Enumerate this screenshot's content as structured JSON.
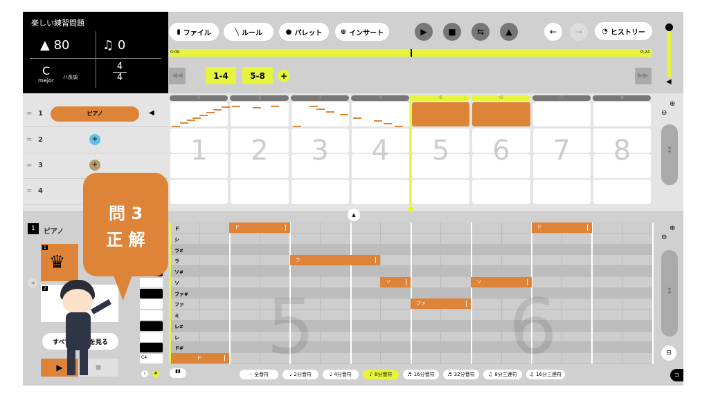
{
  "song": {
    "title": "楽しい練習問題",
    "tempo": "80",
    "transpose": "0",
    "key": "C",
    "key_mode": "major",
    "key_jp": "ハ長調",
    "time_num": "4",
    "time_den": "4"
  },
  "toolbar": {
    "file": "ファイル",
    "rule": "ルール",
    "palette": "パレット",
    "insert": "インサート",
    "history": "ヒストリー"
  },
  "timeline": {
    "start": "0:00",
    "end": "0:24",
    "position_fraction": 0.5
  },
  "pages": [
    "1-4",
    "5-8"
  ],
  "measures": [
    "1",
    "2",
    "3",
    "4",
    "5",
    "6",
    "7",
    "8"
  ],
  "measure_tabs": [
    "♮1",
    "♮2",
    "♮3",
    "♮4",
    "♮5",
    "♮6",
    "♮7",
    "♮8"
  ],
  "active_measures": [
    "5",
    "6"
  ],
  "tracks": [
    {
      "num": "1",
      "name": "ピアノ"
    },
    {
      "num": "2"
    },
    {
      "num": "3"
    },
    {
      "num": "4"
    }
  ],
  "editor": {
    "track_num": "1",
    "track_name": "ピアノ",
    "inst1": "1",
    "inst2": "2",
    "show_all": "すべての楽器を見る",
    "c4": "C4",
    "flat": "♭",
    "sharp": "#",
    "watermark5": "5",
    "watermark6": "6"
  },
  "rows": [
    "ド",
    "シ",
    "ラ#",
    "ラ",
    "ソ#",
    "ソ",
    "ファ#",
    "ファ",
    "ミ",
    "レ#",
    "レ",
    "ド#",
    "ド"
  ],
  "notes": [
    {
      "pitch": "ド",
      "row": 12,
      "start": 0,
      "len": 1
    },
    {
      "pitch": "ド",
      "row": 0,
      "start": 1,
      "len": 1
    },
    {
      "pitch": "ラ",
      "row": 3,
      "start": 2,
      "len": 1.5
    },
    {
      "pitch": "ソ",
      "row": 5,
      "start": 3.5,
      "len": 0.5
    },
    {
      "pitch": "ファ",
      "row": 7,
      "start": 4,
      "len": 1
    },
    {
      "pitch": "ソ",
      "row": 5,
      "start": 5,
      "len": 1
    },
    {
      "pitch": "ド",
      "row": 0,
      "start": 6,
      "len": 1
    }
  ],
  "durations": [
    {
      "icon": "whole-note",
      "label": "全音符"
    },
    {
      "icon": "half-note",
      "label": "2分音符"
    },
    {
      "icon": "quarter-note",
      "label": "4分音符"
    },
    {
      "icon": "eighth-note",
      "label": "8分音符",
      "selected": true
    },
    {
      "icon": "sixteenth-note",
      "label": "16分音符"
    },
    {
      "icon": "thirtysecond-note",
      "label": "32分音符"
    },
    {
      "icon": "eighth-triplet",
      "label": "8分三連符"
    },
    {
      "icon": "sixteenth-triplet",
      "label": "16分三連符"
    }
  ],
  "overlay": {
    "line1": "問 3",
    "line2": "正 解"
  },
  "colors": {
    "accent": "#e6f53c",
    "note": "#de8438",
    "add_track2": "#5bc0e8",
    "add_track3": "#b39b6a"
  }
}
